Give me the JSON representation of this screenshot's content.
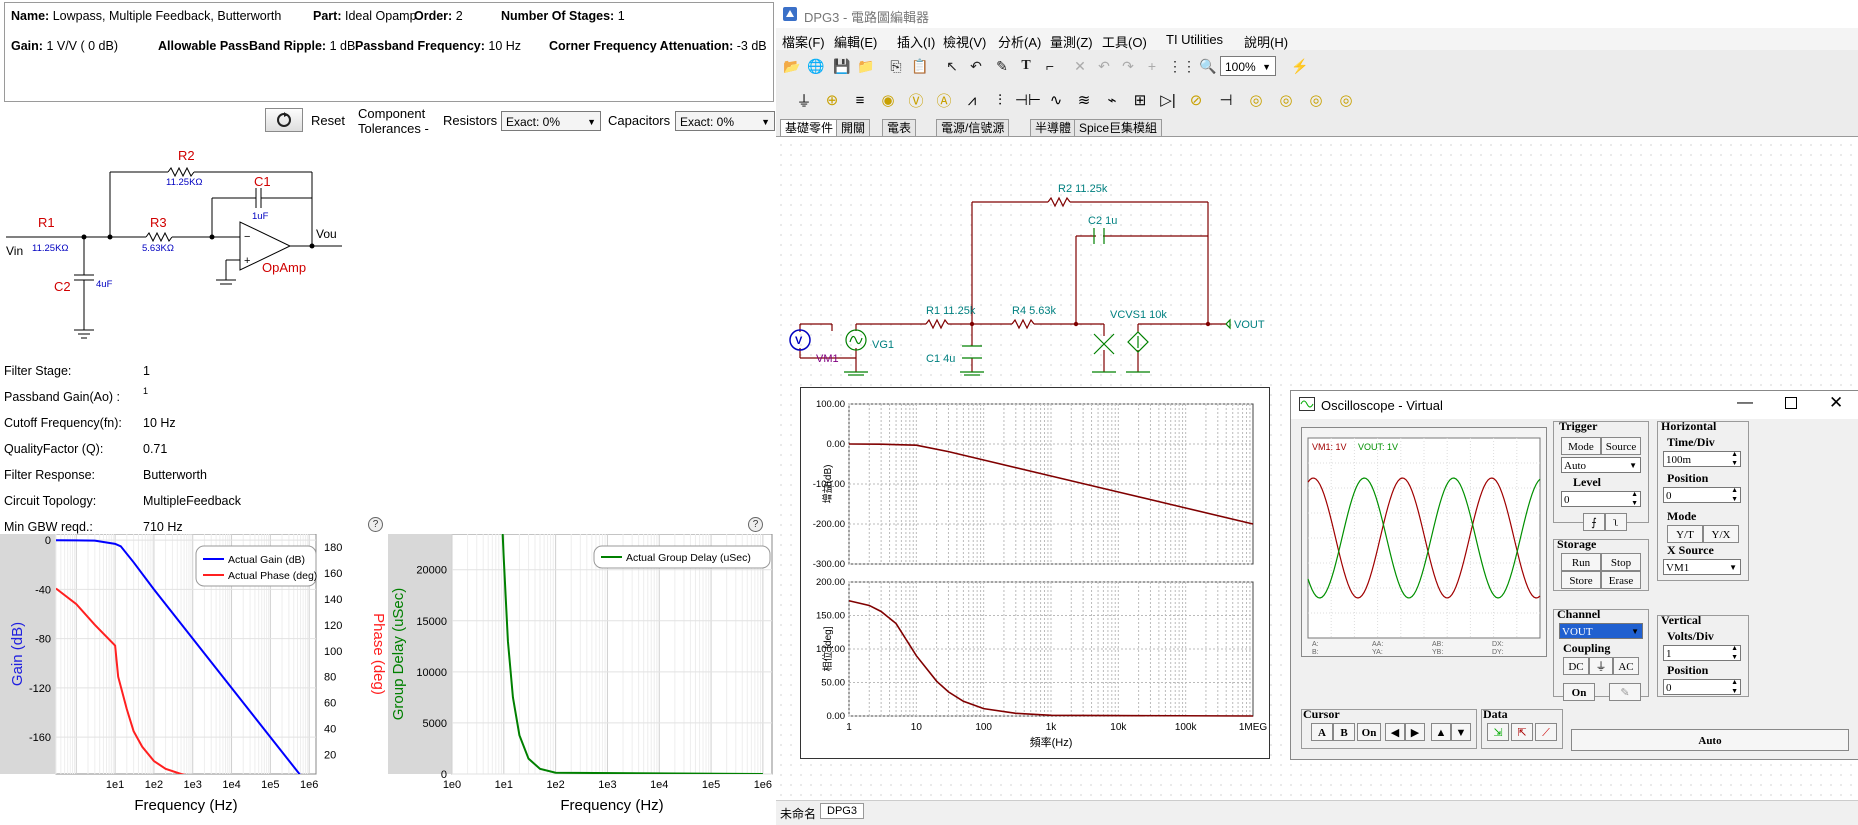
{
  "info": {
    "name_label": "Name:",
    "name_value": "Lowpass, Multiple Feedback, Butterworth",
    "part_label": "Part:",
    "part_value": "Ideal Opamp",
    "order_label": "Order:",
    "order_value": "2",
    "stages_label": "Number Of Stages:",
    "stages_value": "1",
    "gain_label": "Gain:",
    "gain_value": "1 V/V ( 0 dB)",
    "ripple_label": "Allowable PassBand Ripple:",
    "ripple_value": "1 dB",
    "pbf_label": "Passband Frequency:",
    "pbf_value": "10 Hz",
    "cfa_label": "Corner Frequency Attenuation:",
    "cfa_value": "-3 dB"
  },
  "tolerances": {
    "reset_label": "Reset",
    "component_label": "Component",
    "tolerances_label": "Tolerances -",
    "resistors_label": "Resistors",
    "resistors_value": "Exact: 0%",
    "capacitors_label": "Capacitors",
    "capacitors_value": "Exact: 0%"
  },
  "schematic": {
    "r1": "R1",
    "r1_val": "11.25KΩ",
    "r2": "R2",
    "r2_val": "11.25KΩ",
    "r3": "R3",
    "r3_val": "5.63KΩ",
    "c1": "C1",
    "c1_val": "1uF",
    "c2": "C2",
    "c2_val": "4uF",
    "vin": "Vin",
    "vout": "Vou",
    "opamp": "OpAmp"
  },
  "specs": [
    {
      "label": "Filter Stage:",
      "value": "1"
    },
    {
      "label": "Passband Gain(Ao) :",
      "value": "1"
    },
    {
      "label": "Cutoff Frequency(fn):",
      "value": "10 Hz"
    },
    {
      "label": "QualityFactor (Q):",
      "value": "0.71"
    },
    {
      "label": "Filter Response:",
      "value": "Butterworth"
    },
    {
      "label": "Circuit Topology:",
      "value": "MultipleFeedback"
    },
    {
      "label": "Min GBW reqd.:",
      "value": "710 Hz"
    }
  ],
  "help_label": "?",
  "chart_data": [
    {
      "type": "line",
      "x_scale": "log",
      "xlabel": "Frequency (Hz)",
      "ylabel": "Gain (dB)",
      "ylabel_right": "Phase (deg)",
      "x_ticks": [
        "1e1",
        "1e2",
        "1e3",
        "1e4",
        "1e5",
        "1e6"
      ],
      "y_ticks": [
        "0",
        "-40",
        "-80",
        "-120",
        "-160"
      ],
      "y2_ticks": [
        "180",
        "160",
        "140",
        "120",
        "100",
        "80",
        "60",
        "40",
        "20"
      ],
      "ylim": [
        -190,
        5
      ],
      "y2lim": [
        5,
        190
      ],
      "xlim": [
        0.3,
        1500000
      ],
      "legend": "top-right",
      "series": [
        {
          "name": "Actual Gain (dB)",
          "color": "#0000ff",
          "axis": "left",
          "x": [
            0.3,
            1,
            3,
            10,
            14,
            30,
            100,
            1000,
            10000,
            100000,
            1000000
          ],
          "y": [
            -0.1,
            -0.2,
            -0.4,
            -3,
            -5,
            -18,
            -40,
            -80,
            -120,
            -160,
            -200
          ]
        },
        {
          "name": "Actual Phase (deg)",
          "color": "#ff2020",
          "axis": "right",
          "x": [
            0.3,
            1,
            3,
            10,
            12,
            20,
            30,
            50,
            100,
            200,
            500,
            1000,
            10000,
            1000000
          ],
          "y": [
            148,
            136,
            120,
            104,
            80,
            55,
            38,
            26,
            15,
            9,
            5,
            3,
            1,
            0
          ]
        }
      ]
    },
    {
      "type": "line",
      "x_scale": "log",
      "xlabel": "Frequency (Hz)",
      "ylabel": "Group Delay (uSec)",
      "x_ticks": [
        "1e0",
        "1e1",
        "1e2",
        "1e3",
        "1e4",
        "1e5",
        "1e6"
      ],
      "y_ticks": [
        "20000",
        "15000",
        "10000",
        "5000",
        "0"
      ],
      "ylim": [
        0,
        23500
      ],
      "xlim": [
        1,
        1500000
      ],
      "legend": "top-right",
      "series": [
        {
          "name": "Actual Group Delay (uSec)",
          "color": "#008000",
          "x": [
            9.5,
            10,
            12,
            15,
            20,
            30,
            50,
            100,
            1000000
          ],
          "y": [
            23500,
            21000,
            13000,
            7500,
            3800,
            1500,
            500,
            120,
            0
          ]
        }
      ]
    },
    {
      "type": "line",
      "x_scale": "log",
      "xlabel": "頻率(Hz)",
      "top_ylabel": "增益(dB)",
      "bottom_ylabel": "相位 [deg]",
      "x_ticks": [
        "1",
        "10",
        "100",
        "1k",
        "10k",
        "100k",
        "1MEG"
      ],
      "top_y_ticks": [
        "100.00",
        "0.00",
        "-100.00",
        "-200.00",
        "-300.00"
      ],
      "bottom_y_ticks": [
        "200.00",
        "150.00",
        "100.00",
        "50.00",
        "0.00"
      ],
      "top_ylim": [
        -300,
        100
      ],
      "bottom_ylim": [
        0,
        200
      ],
      "series": [
        {
          "name": "gain",
          "color": "#800000",
          "panel": "top",
          "x": [
            1,
            3,
            10,
            30,
            100,
            1000,
            10000,
            100000,
            1000000
          ],
          "y": [
            0,
            -0.4,
            -3,
            -19,
            -40,
            -80,
            -120,
            -160,
            -200
          ]
        },
        {
          "name": "phase",
          "color": "#800000",
          "panel": "bottom",
          "x": [
            1,
            2,
            3,
            5,
            10,
            20,
            30,
            50,
            100,
            300,
            1000,
            1000000
          ],
          "y": [
            172,
            165,
            156,
            138,
            90,
            52,
            36,
            22,
            11,
            4,
            1,
            0
          ]
        }
      ]
    }
  ],
  "dpg": {
    "title": "DPG3 - 電路圖編輯器",
    "menu": [
      "檔案(F)",
      "編輯(E)",
      "插入(I)",
      "檢視(V)",
      "分析(A)",
      "量測(Z)",
      "工具(O)",
      "TI Utilities",
      "說明(H)"
    ],
    "zoom": "100%",
    "tabs": [
      "基礎零件",
      "開關",
      "電表",
      "電源/信號源",
      "半導體",
      "Spice巨集模組"
    ],
    "status": "未命名",
    "status_tab": "DPG3",
    "circuit": {
      "r2": "R2 11.25k",
      "c2": "C2 1u",
      "r1": "R1 11.25k",
      "r4": "R4 5.63k",
      "vcvs": "VCVS1 10k",
      "c1": "C1 4u",
      "vm1": "VM1",
      "vg1": "VG1",
      "vout": "VOUT"
    }
  },
  "osc": {
    "title": "Oscilloscope - Virtual",
    "legend_vm": "VM1: 1V",
    "legend_vout": "VOUT: 1V",
    "readouts": [
      "A:",
      "AA:",
      "AB:",
      "DX:",
      "B:",
      "YA:",
      "YB:",
      "DY:"
    ],
    "trigger_label": "Trigger",
    "mode_btn": "Mode",
    "source_btn": "Source",
    "trig_mode": "Auto",
    "level_label": "Level",
    "level_value": "0",
    "horizontal_label": "Horizontal",
    "timediv_label": "Time/Div",
    "timediv_value": "100m",
    "position_label": "Position",
    "hpos_value": "0",
    "mode_label": "Mode",
    "yt_btn": "Y/T",
    "yx_btn": "Y/X",
    "xsource_label": "X Source",
    "xsource_value": "VM1",
    "storage_label": "Storage",
    "run_btn": "Run",
    "stop_btn": "Stop",
    "store_btn": "Store",
    "erase_btn": "Erase",
    "channel_label": "Channel",
    "channel_value": "VOUT",
    "coupling_label": "Coupling",
    "dc_btn": "DC",
    "gnd_btn": "⏚",
    "ac_btn": "AC",
    "on_btn": "On",
    "vertical_label": "Vertical",
    "voltsdiv_label": "Volts/Div",
    "voltsdiv_value": "1",
    "vpos_label": "Position",
    "vpos_value": "0",
    "cursor_label": "Cursor",
    "cur_a": "A",
    "cur_b": "B",
    "cur_on": "On",
    "data_label": "Data",
    "auto_btn": "Auto"
  }
}
